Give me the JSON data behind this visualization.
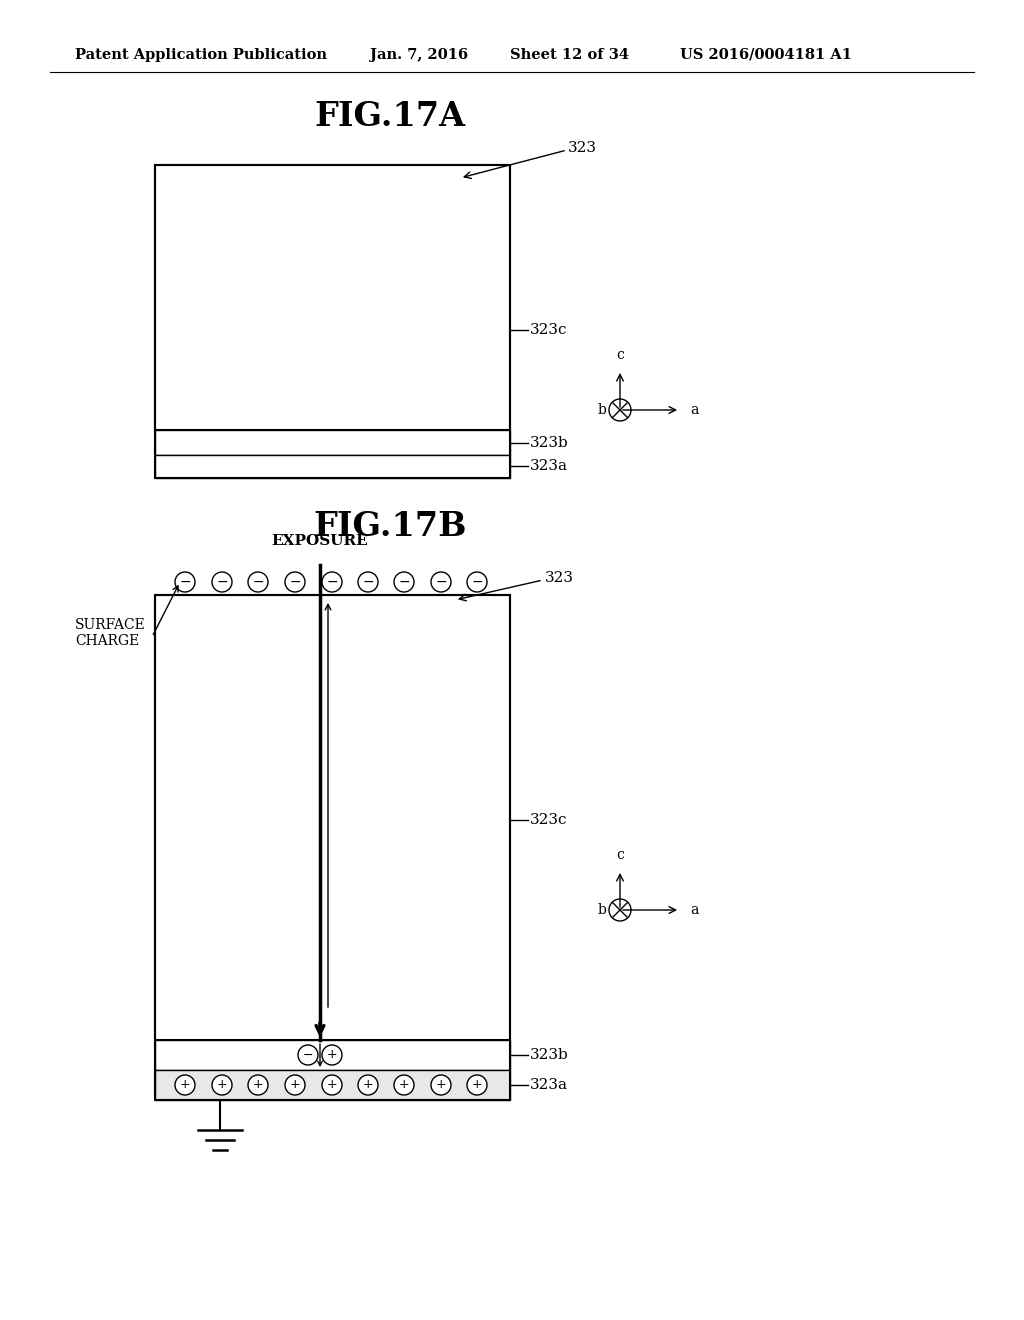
{
  "bg_color": "#ffffff",
  "header_text": "Patent Application Publication",
  "header_date": "Jan. 7, 2016",
  "header_sheet": "Sheet 12 of 34",
  "header_patent": "US 2016/0004181 A1",
  "fig17a_title": "FIG.17A",
  "fig17b_title": "FIG.17B",
  "label_323": "323",
  "label_323a": "323a",
  "label_323b": "323b",
  "label_323c": "323c",
  "label_exposure": "EXPOSURE",
  "label_surface_charge": "SURFACE\nCHARGE",
  "font_size_title": 24,
  "font_size_header": 10.5,
  "font_size_label": 11,
  "font_size_axis": 10
}
